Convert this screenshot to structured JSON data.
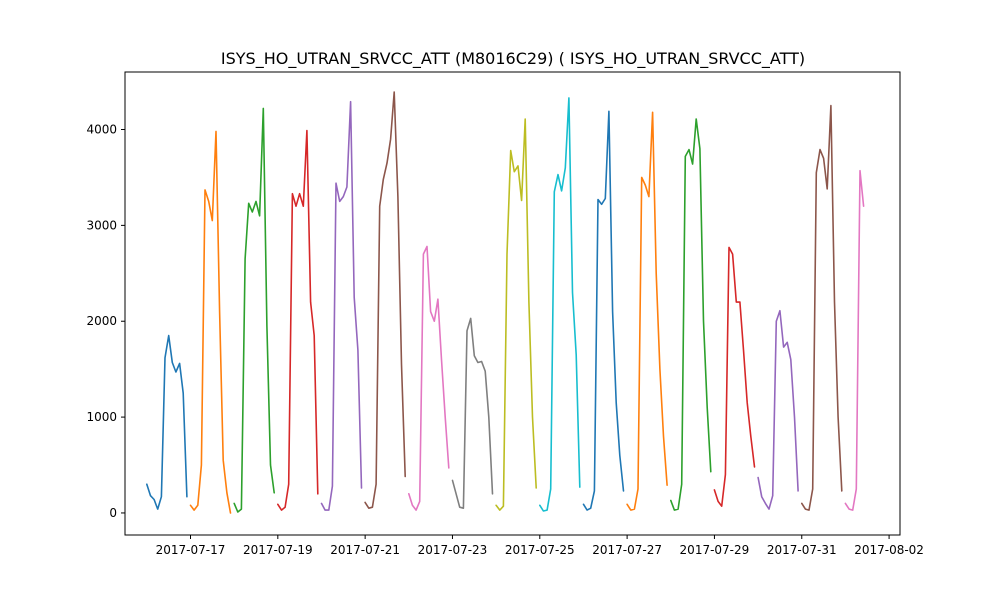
{
  "chart_data": {
    "type": "line",
    "title": "ISYS_HO_UTRAN_SRVCC_ATT (M8016C29) ( ISYS_HO_UTRAN_SRVCC_ATT)",
    "xlabel": "",
    "ylabel": "",
    "xlim": [
      "2017-07-15T12:00",
      "2017-08-02T06:00"
    ],
    "ylim": [
      -230,
      4600
    ],
    "grid": false,
    "x_ticks": [
      "2017-07-17",
      "2017-07-19",
      "2017-07-21",
      "2017-07-23",
      "2017-07-25",
      "2017-07-27",
      "2017-07-29",
      "2017-07-31",
      "2017-08-02"
    ],
    "y_ticks": [
      0,
      1000,
      2000,
      3000,
      4000
    ],
    "series": [
      {
        "color": "#1f77b4",
        "x": [
          "2017-07-16T00:00",
          "2017-07-16T02:00",
          "2017-07-16T04:00",
          "2017-07-16T06:00",
          "2017-07-16T08:00",
          "2017-07-16T10:00",
          "2017-07-16T12:00",
          "2017-07-16T14:00",
          "2017-07-16T16:00",
          "2017-07-16T18:00",
          "2017-07-16T20:00",
          "2017-07-16T22:00"
        ],
        "y": [
          300,
          180,
          140,
          40,
          170,
          1620,
          1850,
          1570,
          1470,
          1560,
          1250,
          170
        ]
      },
      {
        "color": "#ff7f0e",
        "x": [
          "2017-07-17T00:00",
          "2017-07-17T02:00",
          "2017-07-17T04:00",
          "2017-07-17T06:00",
          "2017-07-17T08:00",
          "2017-07-17T10:00",
          "2017-07-17T12:00",
          "2017-07-17T14:00",
          "2017-07-17T16:00",
          "2017-07-17T18:00",
          "2017-07-17T20:00",
          "2017-07-17T22:00"
        ],
        "y": [
          80,
          30,
          80,
          500,
          3370,
          3250,
          3050,
          3980,
          2100,
          550,
          210,
          0
        ]
      },
      {
        "color": "#2ca02c",
        "x": [
          "2017-07-18T00:00",
          "2017-07-18T02:00",
          "2017-07-18T04:00",
          "2017-07-18T06:00",
          "2017-07-18T08:00",
          "2017-07-18T10:00",
          "2017-07-18T12:00",
          "2017-07-18T14:00",
          "2017-07-18T16:00",
          "2017-07-18T18:00",
          "2017-07-18T20:00",
          "2017-07-18T22:00"
        ],
        "y": [
          100,
          10,
          40,
          2650,
          3230,
          3140,
          3250,
          3100,
          4220,
          1950,
          500,
          210
        ]
      },
      {
        "color": "#d62728",
        "x": [
          "2017-07-19T00:00",
          "2017-07-19T02:00",
          "2017-07-19T04:00",
          "2017-07-19T06:00",
          "2017-07-19T08:00",
          "2017-07-19T10:00",
          "2017-07-19T12:00",
          "2017-07-19T14:00",
          "2017-07-19T16:00",
          "2017-07-19T18:00",
          "2017-07-19T20:00",
          "2017-07-19T22:00"
        ],
        "y": [
          90,
          30,
          60,
          300,
          3330,
          3200,
          3330,
          3200,
          3990,
          2200,
          1850,
          200
        ]
      },
      {
        "color": "#9467bd",
        "x": [
          "2017-07-20T00:00",
          "2017-07-20T02:00",
          "2017-07-20T04:00",
          "2017-07-20T06:00",
          "2017-07-20T08:00",
          "2017-07-20T10:00",
          "2017-07-20T12:00",
          "2017-07-20T14:00",
          "2017-07-20T16:00",
          "2017-07-20T18:00",
          "2017-07-20T20:00",
          "2017-07-20T22:00"
        ],
        "y": [
          100,
          30,
          30,
          280,
          3440,
          3250,
          3300,
          3400,
          4290,
          2250,
          1700,
          260
        ]
      },
      {
        "color": "#8c564b",
        "x": [
          "2017-07-21T00:00",
          "2017-07-21T02:00",
          "2017-07-21T04:00",
          "2017-07-21T06:00",
          "2017-07-21T08:00",
          "2017-07-21T10:00",
          "2017-07-21T12:00",
          "2017-07-21T14:00",
          "2017-07-21T16:00",
          "2017-07-21T18:00",
          "2017-07-21T20:00",
          "2017-07-21T22:00"
        ],
        "y": [
          110,
          50,
          60,
          300,
          3200,
          3480,
          3650,
          3900,
          4390,
          3300,
          1550,
          380
        ]
      },
      {
        "color": "#e377c2",
        "x": [
          "2017-07-22T00:00",
          "2017-07-22T02:00",
          "2017-07-22T04:00",
          "2017-07-22T06:00",
          "2017-07-22T08:00",
          "2017-07-22T10:00",
          "2017-07-22T12:00",
          "2017-07-22T14:00",
          "2017-07-22T16:00",
          "2017-07-22T18:00",
          "2017-07-22T20:00",
          "2017-07-22T22:00"
        ],
        "y": [
          200,
          80,
          30,
          120,
          2700,
          2780,
          2100,
          2000,
          2230,
          1600,
          1000,
          470
        ]
      },
      {
        "color": "#7f7f7f",
        "x": [
          "2017-07-23T00:00",
          "2017-07-23T02:00",
          "2017-07-23T04:00",
          "2017-07-23T06:00",
          "2017-07-23T08:00",
          "2017-07-23T10:00",
          "2017-07-23T12:00",
          "2017-07-23T14:00",
          "2017-07-23T16:00",
          "2017-07-23T18:00",
          "2017-07-23T20:00",
          "2017-07-23T22:00"
        ],
        "y": [
          340,
          200,
          60,
          50,
          1900,
          2030,
          1640,
          1570,
          1580,
          1480,
          1000,
          200
        ]
      },
      {
        "color": "#bcbd22",
        "x": [
          "2017-07-24T00:00",
          "2017-07-24T02:00",
          "2017-07-24T04:00",
          "2017-07-24T06:00",
          "2017-07-24T08:00",
          "2017-07-24T10:00",
          "2017-07-24T12:00",
          "2017-07-24T14:00",
          "2017-07-24T16:00",
          "2017-07-24T18:00",
          "2017-07-24T20:00",
          "2017-07-24T22:00"
        ],
        "y": [
          80,
          30,
          70,
          2700,
          3780,
          3560,
          3620,
          3260,
          4110,
          2200,
          1000,
          260
        ]
      },
      {
        "color": "#17becf",
        "x": [
          "2017-07-25T00:00",
          "2017-07-25T02:00",
          "2017-07-25T04:00",
          "2017-07-25T06:00",
          "2017-07-25T08:00",
          "2017-07-25T10:00",
          "2017-07-25T12:00",
          "2017-07-25T14:00",
          "2017-07-25T16:00",
          "2017-07-25T18:00",
          "2017-07-25T20:00",
          "2017-07-25T22:00"
        ],
        "y": [
          80,
          20,
          30,
          250,
          3350,
          3530,
          3360,
          3600,
          4330,
          2300,
          1650,
          270
        ]
      },
      {
        "color": "#1f77b4",
        "x": [
          "2017-07-26T00:00",
          "2017-07-26T02:00",
          "2017-07-26T04:00",
          "2017-07-26T06:00",
          "2017-07-26T08:00",
          "2017-07-26T10:00",
          "2017-07-26T12:00",
          "2017-07-26T14:00",
          "2017-07-26T16:00",
          "2017-07-26T18:00",
          "2017-07-26T20:00",
          "2017-07-26T22:00"
        ],
        "y": [
          90,
          30,
          50,
          230,
          3270,
          3220,
          3280,
          4190,
          2100,
          1150,
          600,
          230
        ]
      },
      {
        "color": "#ff7f0e",
        "x": [
          "2017-07-27T00:00",
          "2017-07-27T02:00",
          "2017-07-27T04:00",
          "2017-07-27T06:00",
          "2017-07-27T08:00",
          "2017-07-27T10:00",
          "2017-07-27T12:00",
          "2017-07-27T14:00",
          "2017-07-27T16:00",
          "2017-07-27T18:00",
          "2017-07-27T20:00",
          "2017-07-27T22:00"
        ],
        "y": [
          90,
          30,
          40,
          250,
          3500,
          3420,
          3300,
          4180,
          2500,
          1500,
          800,
          290
        ]
      },
      {
        "color": "#2ca02c",
        "x": [
          "2017-07-28T00:00",
          "2017-07-28T02:00",
          "2017-07-28T04:00",
          "2017-07-28T06:00",
          "2017-07-28T08:00",
          "2017-07-28T10:00",
          "2017-07-28T12:00",
          "2017-07-28T14:00",
          "2017-07-28T16:00",
          "2017-07-28T18:00",
          "2017-07-28T20:00",
          "2017-07-28T22:00"
        ],
        "y": [
          130,
          30,
          40,
          300,
          3720,
          3790,
          3640,
          4110,
          3800,
          2000,
          1100,
          430
        ]
      },
      {
        "color": "#d62728",
        "x": [
          "2017-07-29T00:00",
          "2017-07-29T02:00",
          "2017-07-29T04:00",
          "2017-07-29T06:00",
          "2017-07-29T08:00",
          "2017-07-29T10:00",
          "2017-07-29T12:00",
          "2017-07-29T14:00",
          "2017-07-29T16:00",
          "2017-07-29T18:00",
          "2017-07-29T20:00",
          "2017-07-29T22:00"
        ],
        "y": [
          240,
          120,
          70,
          400,
          2770,
          2700,
          2200,
          2200,
          1700,
          1150,
          800,
          480
        ]
      },
      {
        "color": "#9467bd",
        "x": [
          "2017-07-30T00:00",
          "2017-07-30T02:00",
          "2017-07-30T04:00",
          "2017-07-30T06:00",
          "2017-07-30T08:00",
          "2017-07-30T10:00",
          "2017-07-30T12:00",
          "2017-07-30T14:00",
          "2017-07-30T16:00",
          "2017-07-30T18:00",
          "2017-07-30T20:00",
          "2017-07-30T22:00"
        ],
        "y": [
          370,
          170,
          100,
          40,
          180,
          2000,
          2110,
          1730,
          1780,
          1600,
          1000,
          230
        ]
      },
      {
        "color": "#8c564b",
        "x": [
          "2017-07-31T00:00",
          "2017-07-31T02:00",
          "2017-07-31T04:00",
          "2017-07-31T06:00",
          "2017-07-31T08:00",
          "2017-07-31T10:00",
          "2017-07-31T12:00",
          "2017-07-31T14:00",
          "2017-07-31T16:00",
          "2017-07-31T18:00",
          "2017-07-31T20:00",
          "2017-07-31T22:00"
        ],
        "y": [
          100,
          40,
          30,
          250,
          3550,
          3790,
          3700,
          3380,
          4250,
          2200,
          1000,
          230
        ]
      },
      {
        "color": "#e377c2",
        "x": [
          "2017-08-01T00:00",
          "2017-08-01T02:00",
          "2017-08-01T04:00",
          "2017-08-01T06:00",
          "2017-08-01T08:00",
          "2017-08-01T10:00"
        ],
        "y": [
          100,
          40,
          30,
          250,
          3570,
          3200
        ]
      }
    ]
  }
}
